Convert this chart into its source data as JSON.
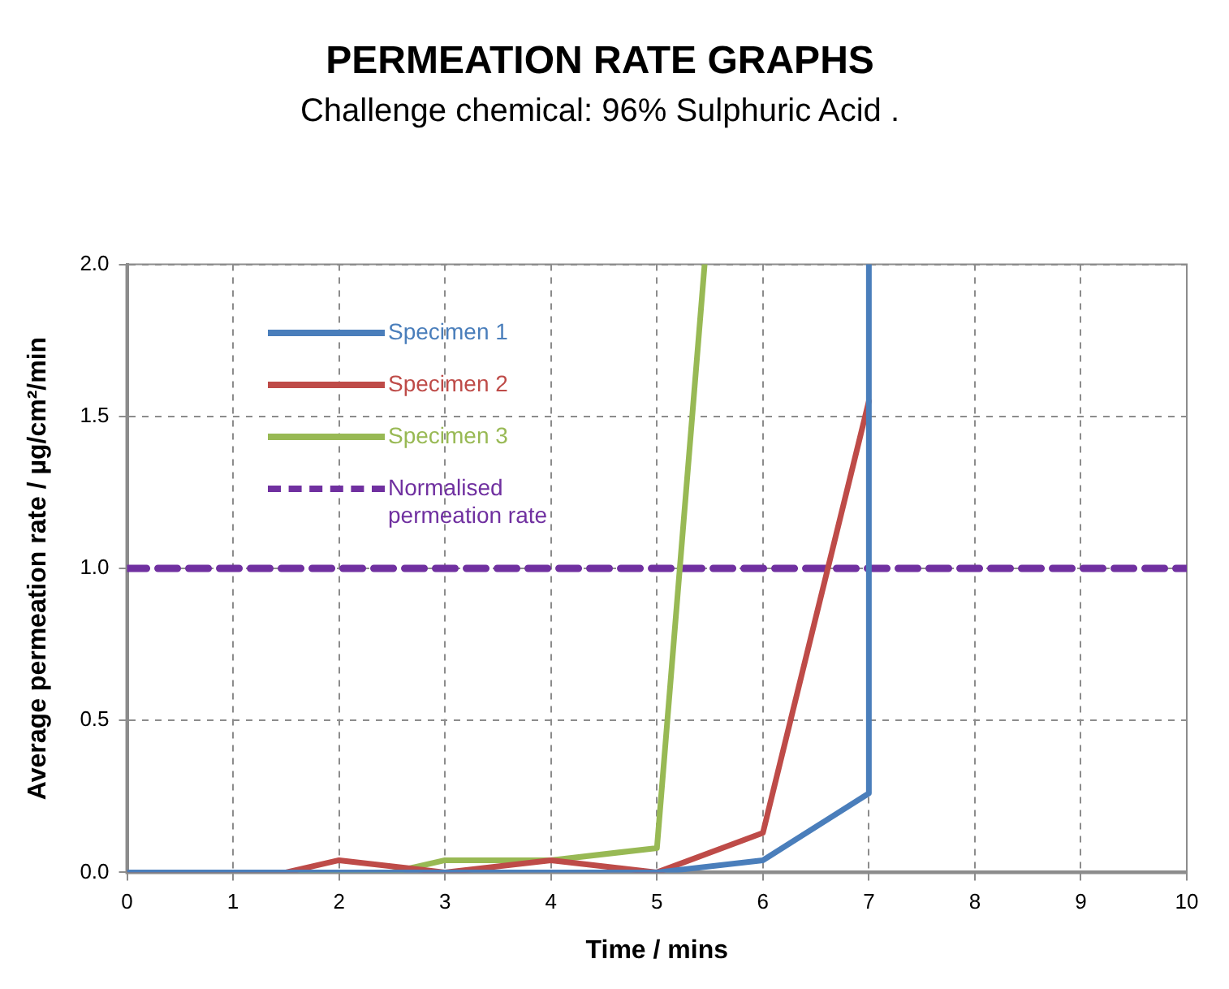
{
  "chart_data": {
    "type": "line",
    "title": "PERMEATION RATE GRAPHS",
    "subtitle": "Challenge chemical: 96% Sulphuric Acid .",
    "xlabel": "Time / mins",
    "ylabel": "Average permeation rate / µg/cm²/min",
    "series": [
      {
        "name": "Specimen 1",
        "color": "#4a7ebb",
        "x": [
          0,
          5,
          6,
          7,
          7
        ],
        "values": [
          0,
          0,
          0.04,
          0.26,
          2.0
        ]
      },
      {
        "name": "Specimen 2",
        "color": "#be4b48",
        "x": [
          0,
          1,
          1.5,
          2,
          3,
          4,
          5,
          6,
          7
        ],
        "values": [
          0,
          0,
          0,
          0.04,
          0,
          0.04,
          0,
          0.13,
          1.55
        ]
      },
      {
        "name": "Specimen 3",
        "color": "#98b954",
        "x": [
          0,
          1,
          2.5,
          3,
          4,
          5,
          5.45
        ],
        "values": [
          0,
          0,
          0,
          0.04,
          0.04,
          0.08,
          2.0
        ]
      }
    ],
    "ref_lines": [
      {
        "axis": "y",
        "value": 1,
        "label": "Normalised permeation rate",
        "color": "#7030a0",
        "line_style": "dashed"
      }
    ],
    "xlim": [
      0,
      10
    ],
    "xticks": [
      0,
      1,
      2,
      3,
      4,
      5,
      6,
      7,
      8,
      9,
      10
    ],
    "ylim": [
      0,
      2
    ],
    "yticks": [
      {
        "value": 0,
        "label": "0.0"
      },
      {
        "value": 0.5,
        "label": "0.5"
      },
      {
        "value": 1,
        "label": "1.0"
      },
      {
        "value": 1.5,
        "label": "1.5"
      },
      {
        "value": 2,
        "label": "2.0"
      }
    ],
    "grid": true,
    "legend": "top left",
    "line_style": "solid",
    "marker": "none"
  }
}
